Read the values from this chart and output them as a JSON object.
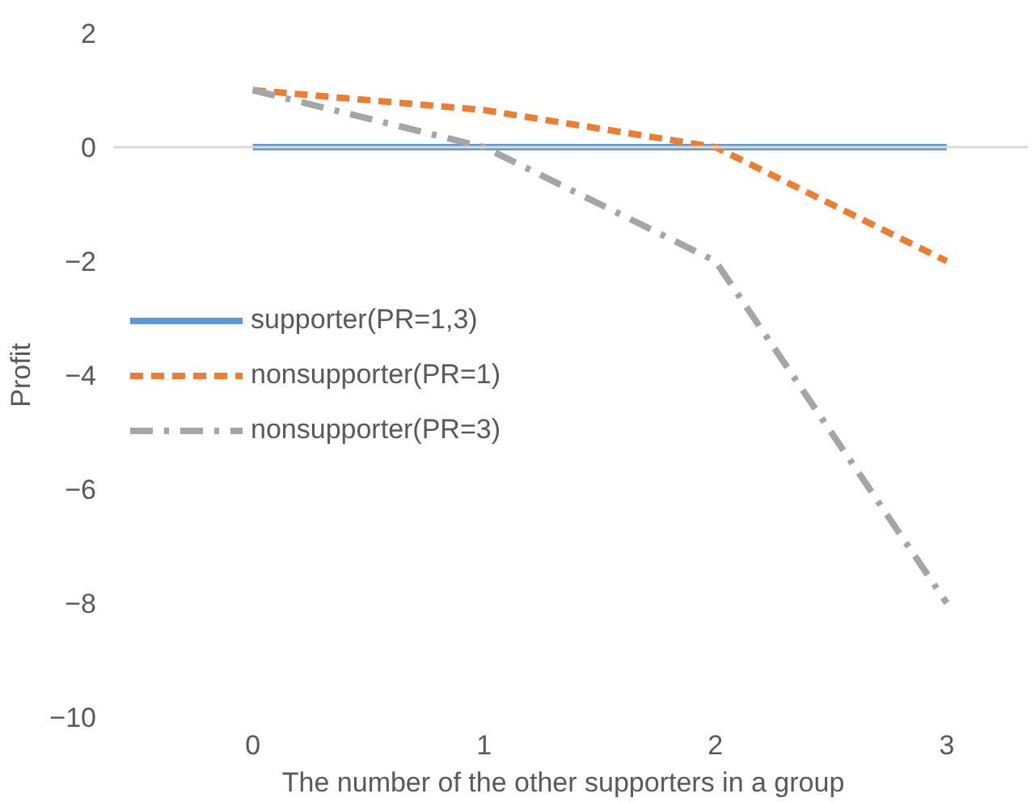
{
  "chart_data": {
    "type": "line",
    "xlabel": "The   number of the other supporters in a group",
    "ylabel": "Profit",
    "x": [
      0,
      1,
      2,
      3
    ],
    "series": [
      {
        "name": "supporter(PR=1,3)",
        "color": "#5b9bd5",
        "values": [
          0,
          0,
          0,
          0
        ],
        "line_style": "solid"
      },
      {
        "name": "nonsupporter(PR=1)",
        "color": "#ed7d31",
        "values": [
          1,
          0.65,
          0,
          -2
        ],
        "line_style": "dashed"
      },
      {
        "name": "nonsupporter(PR=3)",
        "color": "#a5a5a5",
        "values": [
          1,
          0,
          -2,
          -8
        ],
        "line_style": "dashdot"
      }
    ],
    "xlim": [
      -0.6,
      3.35
    ],
    "ylim": [
      -10,
      2
    ],
    "xticks": [
      0,
      1,
      2,
      3
    ],
    "yticks": [
      -10,
      -8,
      -6,
      -4,
      -2,
      0,
      2
    ],
    "ref_lines": [
      {
        "axis": "y",
        "value": 0,
        "color": "#d9d9d9"
      }
    ],
    "grid": false,
    "legend": "left",
    "marker": "none"
  }
}
